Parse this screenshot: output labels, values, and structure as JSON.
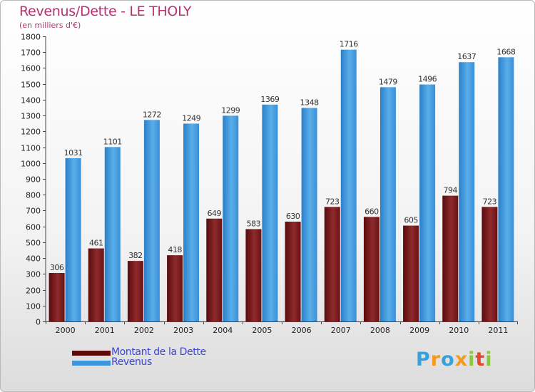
{
  "title": "Revenus/Dette - LE THOLY",
  "subtitle": "(en milliers d'€)",
  "colors": {
    "dette": "#6e1416",
    "revenus": "#3d95de",
    "title": "#b5336e",
    "legend_text": "#3d46d6"
  },
  "legend": [
    {
      "label": "Montant de la Dette",
      "swatch_color": "#5c0a0a"
    },
    {
      "label": "Revenus",
      "swatch_color": "#3d95de"
    }
  ],
  "logo": {
    "text": "Proxiti",
    "letters": [
      {
        "ch": "P",
        "color": "#3aa0dc"
      },
      {
        "ch": "r",
        "color": "#f39a1f"
      },
      {
        "ch": "o",
        "color": "#3aa0dc"
      },
      {
        "ch": "x",
        "color": "#f39a1f"
      },
      {
        "ch": "i",
        "color": "#8cc63f"
      },
      {
        "ch": "t",
        "color": "#e8462a"
      },
      {
        "ch": "i",
        "color": "#8cc63f"
      }
    ]
  },
  "chart_data": {
    "type": "bar",
    "title": "Revenus/Dette - LE THOLY",
    "ylabel": "(en milliers d'€)",
    "xlabel": "",
    "ylim": [
      0,
      1800
    ],
    "ytick_step": 100,
    "grid": false,
    "legend_position": "bottom-left",
    "categories": [
      "2000",
      "2001",
      "2002",
      "2003",
      "2004",
      "2005",
      "2006",
      "2007",
      "2008",
      "2009",
      "2010",
      "2011"
    ],
    "series": [
      {
        "name": "Montant de la Dette",
        "values": [
          306,
          461,
          382,
          418,
          649,
          583,
          630,
          723,
          660,
          605,
          794,
          723
        ]
      },
      {
        "name": "Revenus",
        "values": [
          1031,
          1101,
          1272,
          1249,
          1299,
          1369,
          1348,
          1716,
          1479,
          1496,
          1637,
          1668
        ]
      }
    ]
  }
}
